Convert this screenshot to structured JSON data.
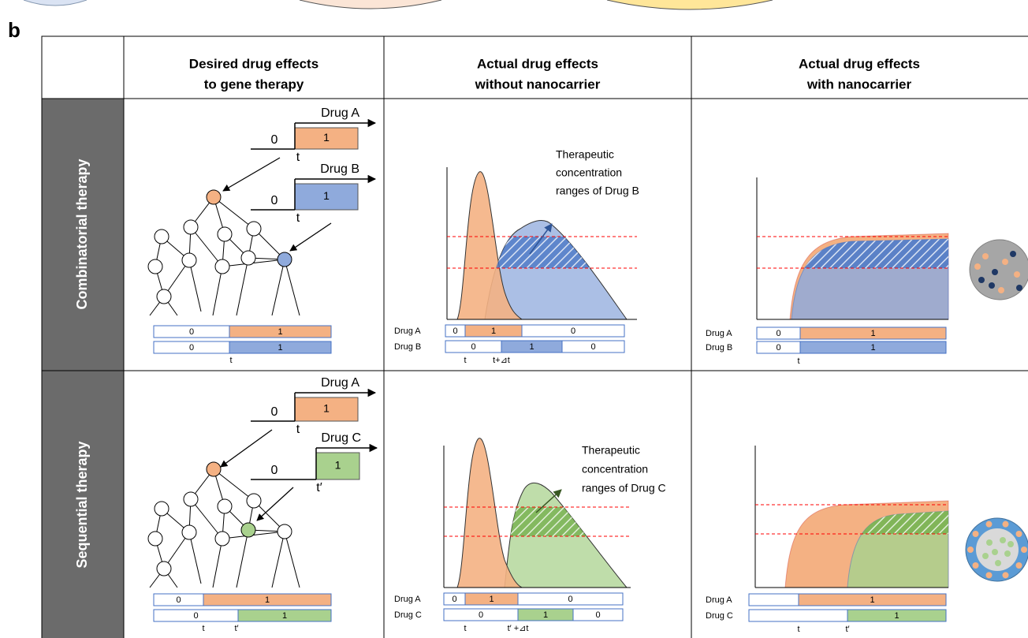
{
  "panel_label": "b",
  "columns": [
    [
      "Desired drug effects",
      "to gene therapy"
    ],
    [
      "Actual drug effects",
      "without nanocarrier"
    ],
    [
      "Actual drug effects",
      "with nanocarrier"
    ]
  ],
  "rows": [
    {
      "label": "Combinatorial therapy",
      "desired": {
        "steps": [
          {
            "drug": "Drug A",
            "zero": "0",
            "one": "1",
            "time": "t"
          },
          {
            "drug": "Drug B",
            "zero": "0",
            "one": "1",
            "time": "t"
          }
        ],
        "bars": [
          [
            "0",
            "1"
          ],
          [
            "0",
            "1"
          ]
        ],
        "bar_ticks": [
          "t"
        ]
      },
      "without": {
        "annotation": [
          "Therapeutic",
          "concentration",
          "ranges of Drug B"
        ],
        "bars": [
          {
            "drug": "Drug A",
            "segments": [
              "0",
              "1",
              "0"
            ]
          },
          {
            "drug": "Drug B",
            "segments": [
              "0",
              "1",
              "0"
            ]
          }
        ],
        "bar_ticks": [
          "t",
          "t+⊿t"
        ]
      },
      "with": {
        "bars": [
          {
            "drug": "Drug A",
            "segments": [
              "0",
              "1"
            ]
          },
          {
            "drug": "Drug B",
            "segments": [
              "0",
              "1"
            ]
          }
        ],
        "bar_ticks": [
          "t"
        ]
      }
    },
    {
      "label": "Sequential therapy",
      "desired": {
        "steps": [
          {
            "drug": "Drug A",
            "zero": "0",
            "one": "1",
            "time": "t"
          },
          {
            "drug": "Drug C",
            "zero": "0",
            "one": "1",
            "time": "t′"
          }
        ],
        "bars": [
          [
            "0",
            "1"
          ],
          [
            "0",
            "1"
          ]
        ],
        "bar_ticks": [
          "t",
          "t′"
        ]
      },
      "without": {
        "annotation": [
          "Therapeutic",
          "concentration",
          "ranges of Drug C"
        ],
        "bars": [
          {
            "drug": "Drug A",
            "segments": [
              "0",
              "1",
              "0"
            ]
          },
          {
            "drug": "Drug C",
            "segments": [
              "0",
              "1",
              "0"
            ]
          }
        ],
        "bar_ticks": [
          "t",
          "t′ +⊿t"
        ]
      },
      "with": {
        "bars": [
          {
            "drug": "Drug A",
            "segments": [
              null,
              "1"
            ]
          },
          {
            "drug": "Drug C",
            "segments": [
              null,
              "1"
            ]
          }
        ],
        "bar_ticks": [
          "t",
          "t′"
        ]
      }
    }
  ]
}
